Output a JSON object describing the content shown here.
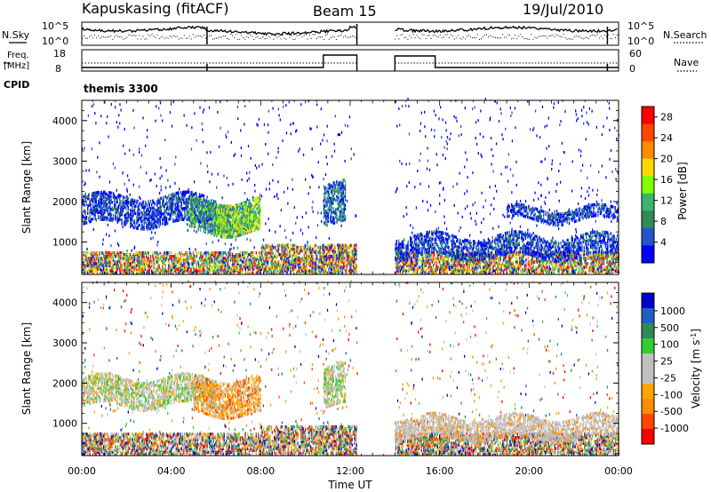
{
  "header": {
    "station": "Kapuskasing (fitACF)",
    "beam": "Beam 15",
    "date": "19/Jul/2010"
  },
  "top_panels": {
    "nsky_label": "N.Sky",
    "nsearch_label": "N.Search",
    "noise_ticks": [
      "10^5",
      "10^0"
    ],
    "freq_label_1": "Freq.",
    "freq_label_2": "[MHz]",
    "freq_ticks": [
      "18",
      "8"
    ],
    "nave_label": "Nave",
    "nave_ticks": [
      "60",
      "0"
    ],
    "cpid_label": "CPID",
    "cpid_value": "themis 3300"
  },
  "colors": {
    "power_scale": [
      "#0000ff",
      "#2255cc",
      "#2e8b57",
      "#3cb371",
      "#7fff00",
      "#ffd700",
      "#ff8c00",
      "#ff4500",
      "#ff0000"
    ],
    "velocity_scale": [
      "#0000cd",
      "#1e5fc0",
      "#2e8b57",
      "#32cd32",
      "#c0c0c0",
      "#c0c0c0",
      "#ffa500",
      "#ff8c00",
      "#ff4500",
      "#ff0000"
    ]
  },
  "chart_data": [
    {
      "type": "heatmap",
      "panel": "power",
      "ylabel": "Slant Range [km]",
      "x_ticks": [
        "00:00",
        "04:00",
        "08:00",
        "12:00",
        "16:00",
        "20:00",
        "00:00"
      ],
      "y_ticks": [
        "1000",
        "2000",
        "3000",
        "4000"
      ],
      "ylim": [
        200,
        4500
      ],
      "xlim_hours": [
        0,
        24
      ],
      "data_gap_hours": [
        12.3,
        14.0
      ],
      "colorbar_label": "Power [dB]",
      "colorbar_ticks": [
        "4",
        "8",
        "12",
        "16",
        "20",
        "24",
        "28"
      ],
      "colorbar_range": [
        0,
        30
      ],
      "echo_regions": [
        {
          "t0": 0.0,
          "t1": 6.0,
          "r0": 1400,
          "r1": 2100,
          "value": 6
        },
        {
          "t0": 4.8,
          "t1": 7.5,
          "r0": 1200,
          "r1": 2000,
          "value": 12
        },
        {
          "t0": 6.0,
          "t1": 8.0,
          "r0": 1200,
          "r1": 2000,
          "value": 16
        },
        {
          "t0": 10.8,
          "t1": 11.8,
          "r0": 1400,
          "r1": 2400,
          "value": 8
        },
        {
          "t0": 14.0,
          "t1": 24.0,
          "r0": 600,
          "r1": 1100,
          "value": 5
        },
        {
          "t0": 19.0,
          "t1": 24.0,
          "r0": 1500,
          "r1": 1800,
          "value": 4
        }
      ]
    },
    {
      "type": "heatmap",
      "panel": "velocity",
      "xlabel": "Time UT",
      "ylabel": "Slant Range [km]",
      "x_ticks": [
        "00:00",
        "04:00",
        "08:00",
        "12:00",
        "16:00",
        "20:00",
        "00:00"
      ],
      "y_ticks": [
        "1000",
        "2000",
        "3000",
        "4000"
      ],
      "ylim": [
        200,
        4500
      ],
      "xlim_hours": [
        0,
        24
      ],
      "data_gap_hours": [
        12.3,
        14.0
      ],
      "colorbar_label": "Velocity [m s^-1]",
      "colorbar_ticks": [
        "1000",
        "500",
        "100",
        "25",
        "-25",
        "-100",
        "-500",
        "-1000"
      ],
      "echo_regions": [
        {
          "t0": 0.0,
          "t1": 6.0,
          "r0": 1400,
          "r1": 2100,
          "value": "25"
        },
        {
          "t0": 5.0,
          "t1": 8.0,
          "r0": 1200,
          "r1": 2100,
          "value": "-100"
        },
        {
          "t0": 10.8,
          "t1": 11.8,
          "r0": 1400,
          "r1": 2400,
          "value": "25"
        },
        {
          "t0": 14.0,
          "t1": 24.0,
          "r0": 600,
          "r1": 1100,
          "value": "-25"
        }
      ]
    }
  ]
}
